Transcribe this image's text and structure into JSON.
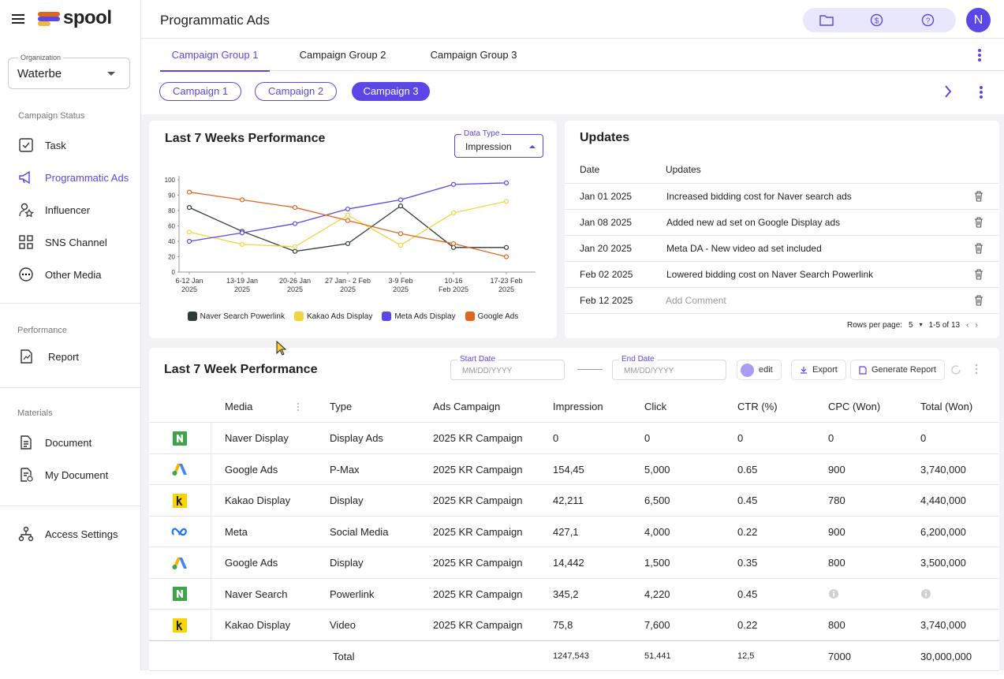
{
  "sidebar": {
    "brand": "spool",
    "organization_label": "Organization",
    "organization": "Waterbe",
    "sections": [
      {
        "title": "Campaign Status",
        "items": [
          "Task",
          "Programmatic Ads",
          "Influencer",
          "SNS Channel",
          "Other Media"
        ]
      },
      {
        "title": "Performance",
        "items": [
          "Report"
        ]
      },
      {
        "title": "Materials",
        "items": [
          "Document",
          "My Document"
        ]
      }
    ],
    "footer_item": "Access Settings"
  },
  "header": {
    "title": "Programmatic Ads",
    "avatar": "N"
  },
  "tabs": [
    "Campaign Group 1",
    "Campaign Group 2",
    "Campaign Group 3"
  ],
  "campaigns": [
    "Campaign 1",
    "Campaign 2",
    "Campaign 3"
  ],
  "chart_card": {
    "title": "Last 7 Weeks Performance",
    "data_type_label": "Data Type",
    "data_type": "Impression"
  },
  "chart_data": {
    "type": "line",
    "categories": [
      [
        "6-12 Jan",
        "2025"
      ],
      [
        "13-19 Jan",
        "2025"
      ],
      [
        "20-26 Jan",
        "2025"
      ],
      [
        "27 Jan - 2 Feb",
        "2025"
      ],
      [
        "3-9 Feb",
        "2025"
      ],
      [
        "10-16",
        "Feb 2025"
      ],
      [
        "17-23 Feb",
        "2025"
      ]
    ],
    "ylim": [
      0,
      100
    ],
    "yticks": [
      0,
      20,
      40,
      60,
      80,
      90,
      100
    ],
    "series": [
      {
        "name": "Naver Search Powerlink",
        "color": "#2f3b33",
        "values": [
          82,
          53,
          27,
          37,
          83,
          32,
          32
        ]
      },
      {
        "name": "Kakao Ads Display",
        "color": "#f2d43d",
        "values": [
          52,
          36,
          33,
          74,
          35,
          77,
          86
        ]
      },
      {
        "name": "Meta Ads Display",
        "color": "#5b46e8",
        "values": [
          40,
          51,
          63,
          81,
          87,
          97,
          98
        ]
      },
      {
        "name": "Google Ads",
        "color": "#e0661d",
        "values": [
          92,
          87,
          82,
          67,
          50,
          37,
          20
        ]
      }
    ],
    "legend": "bottom"
  },
  "updates": {
    "title": "Updates",
    "columns": [
      "Date",
      "Updates"
    ],
    "rows": [
      {
        "date": "Jan 01 2025",
        "text": "Increased bidding cost for Naver search ads"
      },
      {
        "date": "Jan 08 2025",
        "text": "Added new ad set on  Google Display ads"
      },
      {
        "date": "Jan 20 2025",
        "text": "Meta DA - New video ad set included"
      },
      {
        "date": "Feb 02 2025",
        "text": "Lowered bidding cost on Naver Search Powerlink"
      },
      {
        "date": "Feb 12 2025",
        "placeholder": "Add Comment"
      }
    ],
    "rows_per_page_label": "Rows per page:",
    "rows_per_page": "5",
    "range": "1-5 of 13"
  },
  "table_card": {
    "title": "Last 7 Week Performance",
    "start_label": "Start Date",
    "start_placeholder": "MM/DD/YYYY",
    "end_label": "End Date",
    "end_placeholder": "MM/DD/YYYY",
    "edit": "edit",
    "export": "Export",
    "generate": "Generate Report"
  },
  "table": {
    "columns": [
      "Media",
      "Type",
      "Ads Campaign",
      "Impression",
      "Click",
      "CTR (%)",
      "CPC (Won)",
      "Total (Won)"
    ],
    "rows": [
      [
        "Naver Display",
        "Display Ads",
        "2025 KR Campaign",
        "0",
        "0",
        "0",
        "0",
        "0"
      ],
      [
        "Google Ads",
        "P-Max",
        "2025 KR Campaign",
        "154,45",
        "5,000",
        "0.65",
        "900",
        "3,740,000"
      ],
      [
        "Kakao Display",
        "Display",
        "2025 KR Campaign",
        "42,211",
        "6,500",
        "0.45",
        "780",
        "4,440,000"
      ],
      [
        "Meta",
        "Social Media",
        "2025 KR Campaign",
        "427,1",
        "4,000",
        "0.22",
        "900",
        "6,200,000"
      ],
      [
        "Google Ads",
        "Display",
        "2025 KR Campaign",
        "14,442",
        "1,500",
        "0.35",
        "800",
        "3,500,000"
      ],
      [
        "Naver Search",
        "Powerlink",
        "2025 KR Campaign",
        "345,2",
        "4,220",
        "0.45",
        null,
        null
      ],
      [
        "Kakao Display",
        "Video",
        "2025 KR Campaign",
        "75,8",
        "7,600",
        "0.22",
        "800",
        "3,740,000"
      ]
    ],
    "total": {
      "label": "Total",
      "values": [
        "1247,543",
        "51,441",
        "12,5",
        "7000",
        "30,000,000"
      ]
    }
  }
}
